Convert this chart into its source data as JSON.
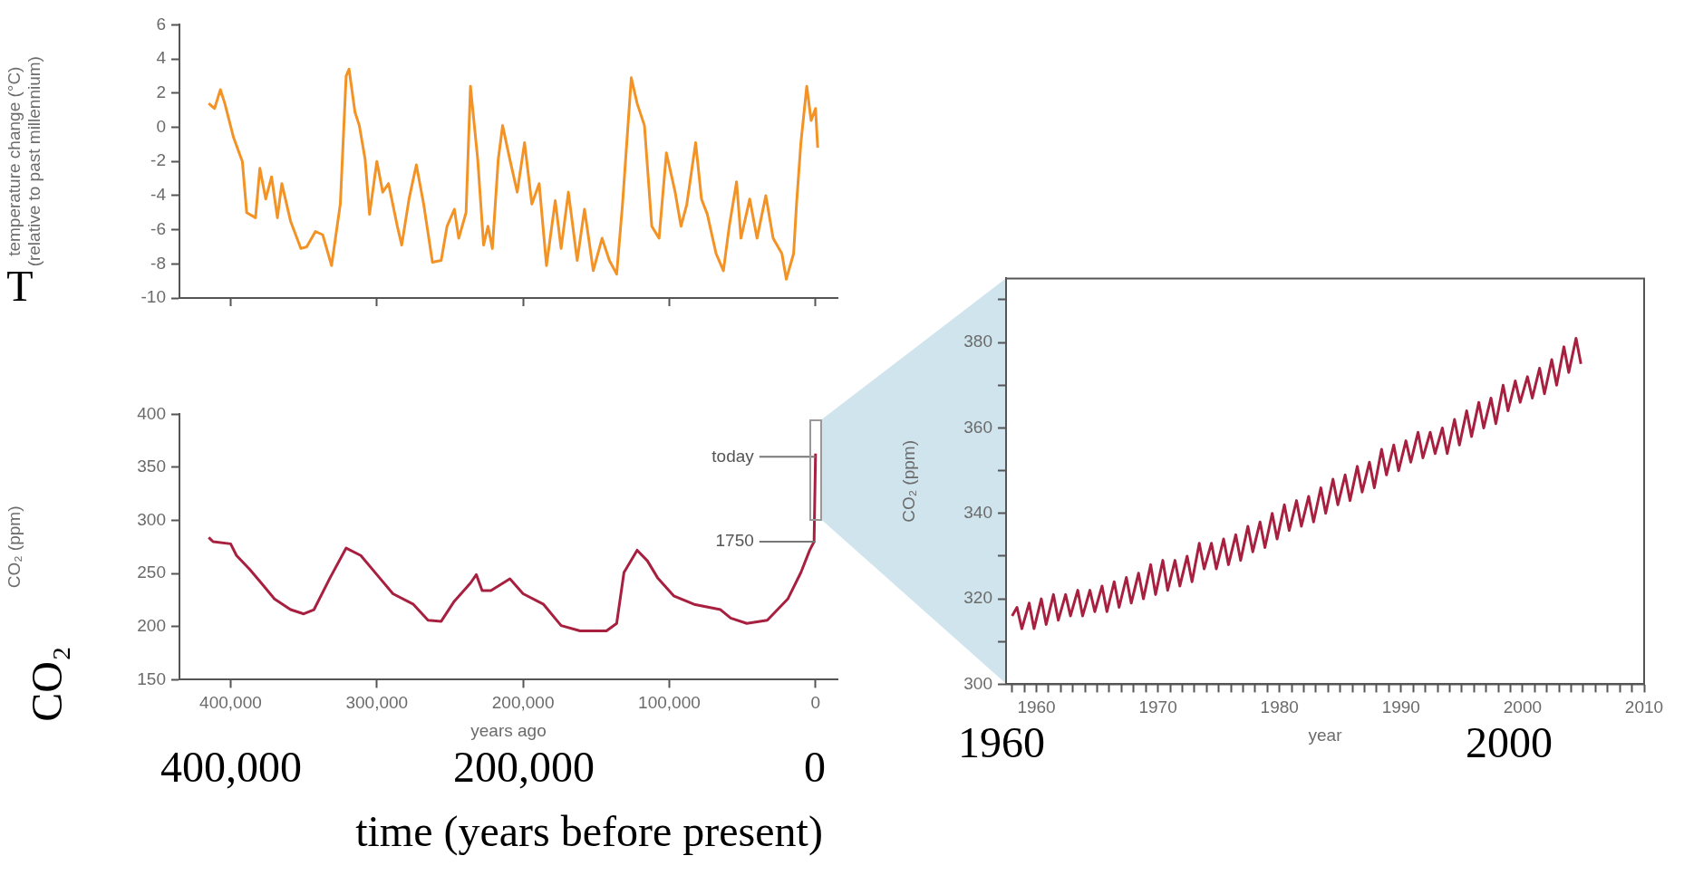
{
  "chart_data": [
    {
      "type": "line",
      "ylabel": "temperature change (°C)\n(relative to past millennium)",
      "color": "#f39325",
      "xlim": [
        435000,
        -15000
      ],
      "ylim": [
        -10,
        6
      ],
      "tick_labels": "y",
      "xticks": [
        {
          "value": 400000,
          "label": null
        },
        {
          "value": 300000,
          "label": null
        },
        {
          "value": 200000,
          "label": null
        },
        {
          "value": 100000,
          "label": null
        },
        {
          "value": 0,
          "label": null
        }
      ],
      "yticks": [
        -10,
        -8,
        -6,
        -4,
        -2,
        0,
        2,
        4,
        6
      ],
      "x": [
        415000,
        411000,
        407000,
        404000,
        398000,
        392000,
        389000,
        383000,
        380000,
        376000,
        372000,
        368000,
        365000,
        359000,
        352000,
        348000,
        342000,
        337000,
        331000,
        325000,
        321000,
        319000,
        315000,
        312000,
        308000,
        305000,
        300000,
        296000,
        292000,
        286000,
        283000,
        278000,
        273000,
        268000,
        262000,
        256000,
        252000,
        247000,
        244000,
        239000,
        236000,
        231000,
        227000,
        224000,
        221000,
        217000,
        214000,
        209000,
        204000,
        199000,
        194000,
        189000,
        184000,
        178000,
        174000,
        169000,
        163000,
        158000,
        152000,
        146000,
        141000,
        136000,
        132000,
        126000,
        122000,
        117000,
        112000,
        107000,
        102000,
        96000,
        92000,
        88000,
        82000,
        78000,
        74000,
        68000,
        63000,
        59000,
        54000,
        51000,
        45000,
        40000,
        34000,
        29000,
        23000,
        20000,
        15000,
        13000,
        10000,
        6000,
        3000,
        0,
        -1500
      ],
      "values": [
        1.4,
        1.1,
        2.2,
        1.4,
        -0.6,
        -2.0,
        -5.0,
        -5.3,
        -2.4,
        -4.2,
        -2.9,
        -5.3,
        -3.3,
        -5.5,
        -7.1,
        -7.0,
        -6.1,
        -6.3,
        -8.1,
        -4.5,
        3.0,
        3.4,
        0.9,
        0.1,
        -1.9,
        -5.1,
        -2.0,
        -3.8,
        -3.3,
        -5.8,
        -6.9,
        -4.2,
        -2.2,
        -4.5,
        -7.9,
        -7.8,
        -5.8,
        -4.8,
        -6.5,
        -5.0,
        2.4,
        -1.9,
        -6.9,
        -5.8,
        -7.1,
        -1.9,
        0.1,
        -1.9,
        -3.8,
        -0.9,
        -4.5,
        -3.3,
        -8.1,
        -4.3,
        -7.1,
        -3.8,
        -7.8,
        -4.8,
        -8.4,
        -6.5,
        -7.8,
        -8.6,
        -4.5,
        2.9,
        1.4,
        0.1,
        -5.8,
        -6.5,
        -1.5,
        -3.8,
        -5.8,
        -4.5,
        -0.9,
        -4.2,
        -5.1,
        -7.4,
        -8.4,
        -5.8,
        -3.2,
        -6.5,
        -4.2,
        -6.5,
        -4.0,
        -6.5,
        -7.4,
        -8.9,
        -7.4,
        -4.5,
        -0.9,
        2.4,
        0.4,
        1.1,
        -1.2
      ],
      "annotations": [
        "T"
      ]
    },
    {
      "type": "line",
      "xlabel": "years ago",
      "ylabel": "CO₂ (ppm)",
      "color": "#a8203f",
      "xlim": [
        435000,
        -15000
      ],
      "ylim": [
        150,
        400
      ],
      "xticks": [
        {
          "value": 400000,
          "label": "400,000"
        },
        {
          "value": 300000,
          "label": "300,000"
        },
        {
          "value": 200000,
          "label": "200,000"
        },
        {
          "value": 100000,
          "label": "100,000"
        },
        0
      ],
      "yticks": [
        150,
        200,
        250,
        300,
        350,
        400
      ],
      "x": [
        415000,
        412000,
        400000,
        396000,
        387000,
        379000,
        370000,
        359000,
        350000,
        343000,
        332000,
        321000,
        311000,
        300000,
        289000,
        275000,
        265000,
        256000,
        247000,
        236000,
        232000,
        228000,
        222000,
        209000,
        200000,
        186000,
        174000,
        161000,
        143000,
        136000,
        131000,
        122000,
        115000,
        108000,
        97000,
        83000,
        65000,
        58000,
        47000,
        33000,
        19000,
        10000,
        4000,
        1000,
        0
      ],
      "values": [
        284,
        280,
        278,
        267,
        254,
        241,
        226,
        216,
        212,
        216,
        246,
        274,
        267,
        249,
        231,
        221,
        206,
        205,
        224,
        241,
        249,
        234,
        234,
        245,
        231,
        221,
        201,
        196,
        196,
        203,
        251,
        272,
        262,
        246,
        229,
        221,
        216,
        208,
        203,
        206,
        226,
        251,
        272,
        280,
        363
      ],
      "annotations": [
        "CO₂",
        "400,000",
        "200,000",
        "0",
        "time (years before present)",
        {
          "text": "today",
          "x": 0,
          "y": 360
        },
        {
          "text": "1750",
          "x": 0,
          "y": 280
        }
      ]
    },
    {
      "type": "line",
      "xlabel": "year",
      "ylabel": "CO₂ (ppm)",
      "color": "#a8203f",
      "xlim": [
        1957.5,
        2010
      ],
      "ylim": [
        300,
        395
      ],
      "xticks": [
        {
          "value": 1958,
          "label": null
        },
        {
          "value": 1959,
          "label": null
        },
        1960,
        {
          "value": 1961,
          "label": null
        },
        {
          "value": 1962,
          "label": null
        },
        {
          "value": 1963,
          "label": null
        },
        {
          "value": 1964,
          "label": null
        },
        {
          "value": 1965,
          "label": null
        },
        {
          "value": 1966,
          "label": null
        },
        {
          "value": 1967,
          "label": null
        },
        {
          "value": 1968,
          "label": null
        },
        {
          "value": 1969,
          "label": null
        },
        1970,
        {
          "value": 1971,
          "label": null
        },
        {
          "value": 1972,
          "label": null
        },
        {
          "value": 1973,
          "label": null
        },
        {
          "value": 1974,
          "label": null
        },
        {
          "value": 1975,
          "label": null
        },
        {
          "value": 1976,
          "label": null
        },
        {
          "value": 1977,
          "label": null
        },
        {
          "value": 1978,
          "label": null
        },
        {
          "value": 1979,
          "label": null
        },
        1980,
        {
          "value": 1981,
          "label": null
        },
        {
          "value": 1982,
          "label": null
        },
        {
          "value": 1983,
          "label": null
        },
        {
          "value": 1984,
          "label": null
        },
        {
          "value": 1985,
          "label": null
        },
        {
          "value": 1986,
          "label": null
        },
        {
          "value": 1987,
          "label": null
        },
        {
          "value": 1988,
          "label": null
        },
        {
          "value": 1989,
          "label": null
        },
        1990,
        {
          "value": 1991,
          "label": null
        },
        {
          "value": 1992,
          "label": null
        },
        {
          "value": 1993,
          "label": null
        },
        {
          "value": 1994,
          "label": null
        },
        {
          "value": 1995,
          "label": null
        },
        {
          "value": 1996,
          "label": null
        },
        {
          "value": 1997,
          "label": null
        },
        {
          "value": 1998,
          "label": null
        },
        {
          "value": 1999,
          "label": null
        },
        2000,
        {
          "value": 2001,
          "label": null
        },
        {
          "value": 2002,
          "label": null
        },
        {
          "value": 2003,
          "label": null
        },
        {
          "value": 2004,
          "label": null
        },
        {
          "value": 2005,
          "label": null
        },
        {
          "value": 2006,
          "label": null
        },
        {
          "value": 2007,
          "label": null
        },
        {
          "value": 2008,
          "label": null
        },
        {
          "value": 2009,
          "label": null
        },
        2010
      ],
      "yticks": [
        300,
        {
          "value": 310,
          "label": null
        },
        320,
        {
          "value": 330,
          "label": null
        },
        340,
        {
          "value": 350,
          "label": null
        },
        360,
        {
          "value": 370,
          "label": null
        },
        380,
        {
          "value": 390,
          "label": null
        }
      ],
      "x": [
        1958.0,
        1958.4,
        1958.8,
        1959.4,
        1959.8,
        1960.4,
        1960.8,
        1961.4,
        1961.8,
        1962.4,
        1962.8,
        1963.4,
        1963.8,
        1964.4,
        1964.8,
        1965.4,
        1965.8,
        1966.4,
        1966.8,
        1967.4,
        1967.8,
        1968.4,
        1968.8,
        1969.4,
        1969.8,
        1970.4,
        1970.8,
        1971.4,
        1971.8,
        1972.4,
        1972.8,
        1973.4,
        1973.8,
        1974.4,
        1974.8,
        1975.4,
        1975.8,
        1976.4,
        1976.8,
        1977.4,
        1977.8,
        1978.4,
        1978.8,
        1979.4,
        1979.8,
        1980.4,
        1980.8,
        1981.4,
        1981.8,
        1982.4,
        1982.8,
        1983.4,
        1983.8,
        1984.4,
        1984.8,
        1985.4,
        1985.8,
        1986.4,
        1986.8,
        1987.4,
        1987.8,
        1988.4,
        1988.8,
        1989.4,
        1989.8,
        1990.4,
        1990.8,
        1991.4,
        1991.8,
        1992.4,
        1992.8,
        1993.4,
        1993.8,
        1994.4,
        1994.8,
        1995.4,
        1995.8,
        1996.4,
        1996.8,
        1997.4,
        1997.8,
        1998.4,
        1998.8,
        1999.4,
        1999.8,
        2000.4,
        2000.8,
        2001.4,
        2001.8,
        2002.4,
        2002.8,
        2003.4,
        2003.8,
        2004.4,
        2004.8
      ],
      "values": [
        316,
        318,
        313,
        319,
        313,
        320,
        314,
        321,
        315,
        321,
        316,
        322,
        316,
        322,
        317,
        323,
        317,
        324,
        318,
        325,
        319,
        326,
        320,
        328,
        321,
        329,
        322,
        329,
        323,
        330,
        324,
        333,
        327,
        333,
        327,
        334,
        328,
        335,
        329,
        337,
        331,
        338,
        332,
        340,
        334,
        342,
        336,
        343,
        337,
        344,
        338,
        346,
        340,
        348,
        342,
        349,
        343,
        351,
        345,
        352,
        346,
        355,
        349,
        356,
        350,
        357,
        352,
        359,
        353,
        359,
        354,
        360,
        354,
        362,
        356,
        364,
        358,
        366,
        360,
        367,
        361,
        370,
        364,
        371,
        366,
        372,
        367,
        374,
        368,
        376,
        370,
        379,
        373,
        381,
        375
      ],
      "annotations": [
        "1960",
        "2000"
      ]
    }
  ]
}
